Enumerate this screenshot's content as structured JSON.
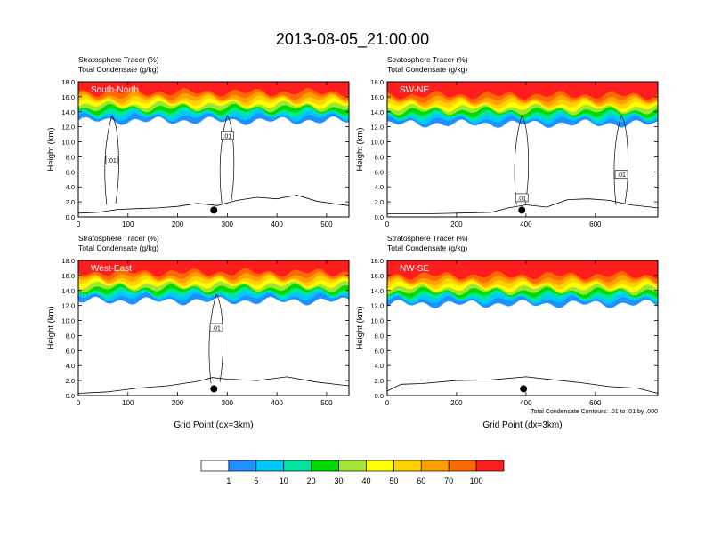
{
  "title": "2013-08-05_21:00:00",
  "chart_data": [
    {
      "type": "heatmap",
      "panel": "South-North",
      "label_line1": "Stratosphere Tracer   (%)",
      "label_line2": "Total Condensate   (g/kg)",
      "ylabel": "Height (km)",
      "xlabel": "",
      "xlim": [
        0,
        545
      ],
      "xticks": [
        0,
        100,
        200,
        300,
        400,
        500
      ],
      "ylim": [
        0,
        18
      ],
      "yticks": [
        "0.0",
        "2.0",
        "4.0",
        "6.0",
        "8.0",
        "10.0",
        "12.0",
        "14.0",
        "16.0",
        "18.0"
      ],
      "marker_x": 273,
      "contour_labels": [
        {
          "text": ".01",
          "x": 68,
          "y": 7.5
        },
        {
          "text": ".01",
          "x": 300,
          "y": 10.8
        }
      ],
      "base_km": 12.8,
      "terrain": [
        [
          0,
          0.5
        ],
        [
          40,
          0.6
        ],
        [
          80,
          1.0
        ],
        [
          120,
          1.1
        ],
        [
          160,
          1.2
        ],
        [
          200,
          1.4
        ],
        [
          240,
          1.8
        ],
        [
          280,
          1.5
        ],
        [
          320,
          2.2
        ],
        [
          360,
          2.6
        ],
        [
          400,
          2.4
        ],
        [
          440,
          2.9
        ],
        [
          480,
          2.1
        ],
        [
          520,
          1.7
        ],
        [
          545,
          1.5
        ]
      ]
    },
    {
      "type": "heatmap",
      "panel": "SW-NE",
      "label_line1": "Stratosphere Tracer   (%)",
      "label_line2": "Total Condensate   (g/kg)",
      "ylabel": "Height (km)",
      "xlabel": "",
      "xlim": [
        0,
        780
      ],
      "xticks": [
        0,
        200,
        400,
        600
      ],
      "ylim": [
        0,
        18
      ],
      "yticks": [
        "0.0",
        "2.0",
        "4.0",
        "6.0",
        "8.0",
        "10.0",
        "12.0",
        "14.0",
        "16.0",
        "18.0"
      ],
      "marker_x": 388,
      "contour_labels": [
        {
          "text": ".01",
          "x": 388,
          "y": 2.5
        },
        {
          "text": ".01",
          "x": 675,
          "y": 5.6
        }
      ],
      "base_km": 12.4,
      "terrain": [
        [
          0,
          0.4
        ],
        [
          100,
          0.4
        ],
        [
          200,
          0.5
        ],
        [
          300,
          0.6
        ],
        [
          350,
          1.2
        ],
        [
          400,
          1.6
        ],
        [
          460,
          1.3
        ],
        [
          520,
          2.3
        ],
        [
          580,
          2.4
        ],
        [
          640,
          2.2
        ],
        [
          700,
          1.6
        ],
        [
          760,
          1.3
        ],
        [
          780,
          1.2
        ]
      ]
    },
    {
      "type": "heatmap",
      "panel": "West-East",
      "label_line1": "Stratosphere Tracer   (%)",
      "label_line2": "Total Condensate   (g/kg)",
      "ylabel": "Height (km)",
      "xlabel": "Grid Point (dx=3km)",
      "xlim": [
        0,
        545
      ],
      "xticks": [
        0,
        100,
        200,
        300,
        400,
        500
      ],
      "ylim": [
        0,
        18
      ],
      "yticks": [
        "0.0",
        "2.0",
        "4.0",
        "6.0",
        "8.0",
        "10.0",
        "12.0",
        "14.0",
        "16.0",
        "18.0"
      ],
      "marker_x": 273,
      "contour_labels": [
        {
          "text": ".01",
          "x": 278,
          "y": 9.0
        }
      ],
      "base_km": 12.6,
      "terrain": [
        [
          0,
          0.3
        ],
        [
          60,
          0.5
        ],
        [
          120,
          1.0
        ],
        [
          180,
          1.3
        ],
        [
          240,
          1.9
        ],
        [
          270,
          2.4
        ],
        [
          300,
          2.2
        ],
        [
          360,
          2.0
        ],
        [
          420,
          2.5
        ],
        [
          480,
          1.8
        ],
        [
          545,
          1.3
        ]
      ]
    },
    {
      "type": "heatmap",
      "panel": "NW-SE",
      "label_line1": "Stratosphere Tracer   (%)",
      "label_line2": "Total Condensate   (g/kg)",
      "ylabel": "Height (km)",
      "xlabel": "Grid Point (dx=3km)",
      "xlim": [
        0,
        780
      ],
      "xticks": [
        0,
        200,
        400,
        600
      ],
      "ylim": [
        0,
        18
      ],
      "yticks": [
        "0.0",
        "2.0",
        "4.0",
        "6.0",
        "8.0",
        "10.0",
        "12.0",
        "14.0",
        "16.0",
        "18.0"
      ],
      "marker_x": 393,
      "contour_labels": [],
      "base_km": 12.2,
      "note": "Total Condensate Contours: .01 to .01 by .000",
      "terrain": [
        [
          0,
          0.6
        ],
        [
          40,
          1.5
        ],
        [
          100,
          1.6
        ],
        [
          200,
          2.0
        ],
        [
          300,
          2.1
        ],
        [
          400,
          2.5
        ],
        [
          480,
          2.1
        ],
        [
          560,
          1.7
        ],
        [
          640,
          1.2
        ],
        [
          720,
          1.0
        ],
        [
          780,
          0.3
        ]
      ]
    }
  ],
  "colorbar": {
    "labels": [
      "1",
      "5",
      "10",
      "20",
      "30",
      "40",
      "50",
      "60",
      "70",
      "100"
    ],
    "colors": [
      "#ffffff",
      "#1e90ff",
      "#00c8ff",
      "#00e6a0",
      "#00dc00",
      "#a0e632",
      "#ffff00",
      "#ffd200",
      "#ffa000",
      "#ff6a00",
      "#ff1e1e"
    ]
  }
}
